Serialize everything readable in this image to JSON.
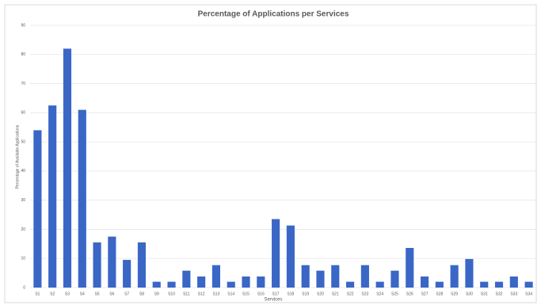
{
  "chart_data": {
    "type": "bar",
    "title": "Percentage of Applications per Services",
    "x_label": "Services",
    "y_label": "Percentage of Available Applications",
    "categories": [
      "S1",
      "S2",
      "S3",
      "S4",
      "S5",
      "S6",
      "S7",
      "S8",
      "S9",
      "S10",
      "S11",
      "S12",
      "S13",
      "S14",
      "S15",
      "S16",
      "S17",
      "S18",
      "S19",
      "S20",
      "S21",
      "S22",
      "S23",
      "S24",
      "S25",
      "S26",
      "S27",
      "S28",
      "S29",
      "S30",
      "S31",
      "S32",
      "S33",
      "S34"
    ],
    "values": [
      54,
      62.5,
      82,
      61,
      15.5,
      17.5,
      9.5,
      15.5,
      2,
      2,
      5.8,
      3.8,
      7.7,
      2,
      3.8,
      3.8,
      23.5,
      21.3,
      7.7,
      5.8,
      7.7,
      2,
      7.7,
      2,
      5.8,
      13.6,
      3.8,
      2,
      7.7,
      9.8,
      2,
      2,
      3.8,
      2
    ],
    "color": "#3a67c6",
    "ylim": [
      0,
      90
    ],
    "yticks": [
      0,
      10,
      20,
      30,
      40,
      50,
      60,
      70,
      80,
      90
    ],
    "grid": true
  }
}
